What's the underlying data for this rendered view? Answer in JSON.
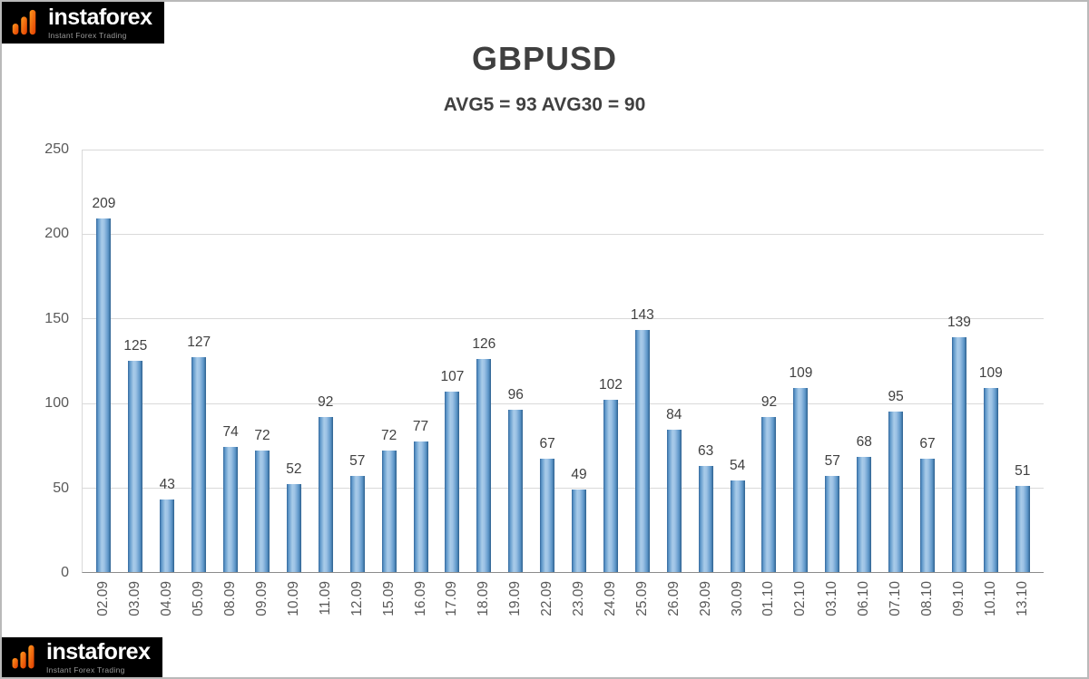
{
  "page": {
    "background": "#ffffff",
    "border_color": "#b9b9b9"
  },
  "logo": {
    "brand": "instaforex",
    "tagline": "Instant Forex Trading",
    "bg_color": "#000000",
    "accent_colors": [
      "#ff9a1f",
      "#e03a00"
    ]
  },
  "chart_data": {
    "type": "bar",
    "title": "GBPUSD",
    "subtitle": "AVG5 = 93 AVG30 = 90",
    "categories": [
      "02.09",
      "03.09",
      "04.09",
      "05.09",
      "08.09",
      "09.09",
      "10.09",
      "11.09",
      "12.09",
      "15.09",
      "16.09",
      "17.09",
      "18.09",
      "19.09",
      "22.09",
      "23.09",
      "24.09",
      "25.09",
      "26.09",
      "29.09",
      "30.09",
      "01.10",
      "02.10",
      "03.10",
      "06.10",
      "07.10",
      "08.10",
      "09.10",
      "10.10",
      "13.10"
    ],
    "values": [
      209,
      125,
      43,
      127,
      74,
      72,
      52,
      92,
      57,
      72,
      77,
      107,
      126,
      96,
      67,
      49,
      102,
      143,
      84,
      63,
      54,
      92,
      109,
      57,
      68,
      95,
      67,
      139,
      109,
      51
    ],
    "xlabel": "",
    "ylabel": "",
    "ylim": [
      0,
      250
    ],
    "yticks": [
      0,
      50,
      100,
      150,
      200,
      250
    ],
    "grid": true,
    "legend": "none",
    "bar_color_gradient": [
      "#31669b",
      "#a9cbe9",
      "#2d618f"
    ],
    "value_label_color": "#404040",
    "tick_label_color": "#595959"
  }
}
